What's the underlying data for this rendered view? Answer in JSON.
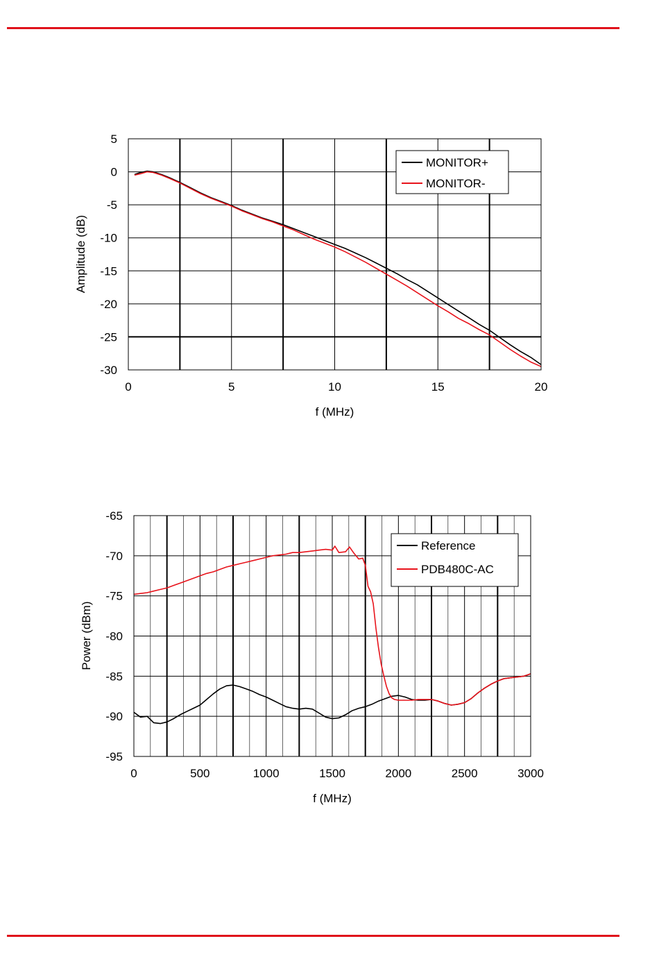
{
  "colors": {
    "rule": "#e0121b",
    "black_series": "#000000",
    "red_series": "#e8131b",
    "grid_major": "#000000",
    "grid_minor": "#000000"
  },
  "chart_data": [
    {
      "type": "line",
      "xlabel": "f (MHz)",
      "ylabel": "Amplitude (dB)",
      "xlim": [
        0,
        20
      ],
      "ylim": [
        -30,
        5
      ],
      "xticks": [
        0,
        5,
        10,
        15,
        20
      ],
      "yticks": [
        5,
        0,
        -5,
        -10,
        -15,
        -20,
        -25,
        -30
      ],
      "minor_x_grid": [
        2.5,
        7.5,
        12.5,
        17.5
      ],
      "minor_y_grid": [
        -25
      ],
      "grid": true,
      "legend": "top-right",
      "series": [
        {
          "name": "MONITOR+",
          "color": "#000000",
          "x": [
            0.3,
            0.6,
            0.9,
            1.2,
            1.6,
            2.0,
            2.5,
            3.0,
            3.5,
            4.0,
            4.5,
            5.0,
            5.5,
            6.0,
            6.5,
            7.0,
            7.5,
            8.0,
            8.5,
            9.0,
            9.5,
            10.0,
            10.5,
            11.0,
            11.5,
            12.0,
            12.5,
            13.0,
            13.5,
            14.0,
            14.5,
            15.0,
            15.5,
            16.0,
            16.5,
            17.0,
            17.5,
            18.0,
            18.5,
            19.0,
            19.5,
            20.0
          ],
          "y": [
            -0.4,
            -0.1,
            0.1,
            0.0,
            -0.4,
            -0.9,
            -1.6,
            -2.4,
            -3.2,
            -3.9,
            -4.5,
            -5.1,
            -5.8,
            -6.4,
            -7.0,
            -7.5,
            -8.0,
            -8.6,
            -9.2,
            -9.8,
            -10.4,
            -11.0,
            -11.6,
            -12.3,
            -13.0,
            -13.8,
            -14.6,
            -15.4,
            -16.3,
            -17.1,
            -18.1,
            -19.1,
            -20.1,
            -21.1,
            -22.1,
            -23.1,
            -24.0,
            -25.1,
            -26.2,
            -27.2,
            -28.1,
            -29.2
          ]
        },
        {
          "name": "MONITOR-",
          "color": "#e8131b",
          "x": [
            0.3,
            0.6,
            0.9,
            1.2,
            1.6,
            2.0,
            2.5,
            3.0,
            3.5,
            4.0,
            4.5,
            5.0,
            5.5,
            6.0,
            6.5,
            7.0,
            7.5,
            8.0,
            8.5,
            9.0,
            9.5,
            10.0,
            10.5,
            11.0,
            11.5,
            12.0,
            12.5,
            13.0,
            13.5,
            14.0,
            14.5,
            15.0,
            15.5,
            16.0,
            16.5,
            17.0,
            17.5,
            18.0,
            18.5,
            19.0,
            19.5,
            20.0
          ],
          "y": [
            -0.5,
            -0.3,
            0.0,
            -0.1,
            -0.5,
            -1.0,
            -1.7,
            -2.5,
            -3.3,
            -4.0,
            -4.6,
            -5.2,
            -5.9,
            -6.5,
            -7.1,
            -7.6,
            -8.2,
            -8.8,
            -9.5,
            -10.2,
            -10.8,
            -11.4,
            -12.1,
            -12.9,
            -13.7,
            -14.6,
            -15.5,
            -16.4,
            -17.3,
            -18.3,
            -19.3,
            -20.3,
            -21.2,
            -22.2,
            -23.0,
            -23.9,
            -24.7,
            -25.8,
            -26.9,
            -27.9,
            -28.8,
            -29.5
          ]
        }
      ]
    },
    {
      "type": "line",
      "xlabel": "f (MHz)",
      "ylabel": "Power (dBm)",
      "xlim": [
        0,
        3000
      ],
      "ylim": [
        -95,
        -65
      ],
      "xticks": [
        0,
        500,
        1000,
        1500,
        2000,
        2500,
        3000
      ],
      "yticks": [
        -65,
        -70,
        -75,
        -80,
        -85,
        -90,
        -95
      ],
      "minor_x_grid": [
        250,
        750,
        1250,
        1750,
        2250,
        2750
      ],
      "minor_y_grid": [],
      "grid": true,
      "legend": "top-right",
      "series": [
        {
          "name": "Reference",
          "color": "#000000",
          "x": [
            0,
            50,
            100,
            150,
            200,
            250,
            300,
            350,
            400,
            450,
            500,
            550,
            600,
            650,
            700,
            750,
            800,
            850,
            900,
            950,
            1000,
            1050,
            1100,
            1150,
            1200,
            1250,
            1300,
            1350,
            1400,
            1450,
            1500,
            1550,
            1600,
            1650,
            1700,
            1750,
            1800,
            1850,
            1900,
            1950,
            2000,
            2050,
            2100,
            2150,
            2200,
            2250,
            2300,
            2350,
            2400,
            2450,
            2500,
            2550,
            2600,
            2650,
            2700,
            2750,
            2800,
            2850,
            2900,
            2950,
            3000
          ],
          "y": [
            -89.5,
            -90.1,
            -90.0,
            -90.8,
            -90.9,
            -90.7,
            -90.3,
            -89.8,
            -89.4,
            -89.0,
            -88.6,
            -87.9,
            -87.2,
            -86.6,
            -86.2,
            -86.1,
            -86.3,
            -86.6,
            -86.9,
            -87.3,
            -87.6,
            -88.0,
            -88.4,
            -88.8,
            -89.0,
            -89.1,
            -89.0,
            -89.1,
            -89.6,
            -90.1,
            -90.3,
            -90.2,
            -89.8,
            -89.3,
            -89.0,
            -88.8,
            -88.5,
            -88.1,
            -87.8,
            -87.5,
            -87.4,
            -87.6,
            -87.9,
            -88.0,
            -88.0,
            -87.9,
            -88.1,
            -88.4,
            -88.6,
            -88.5,
            -88.3,
            -87.8,
            -87.1,
            -86.5,
            -86.0,
            -85.6,
            -85.3,
            -85.2,
            -85.1,
            -85.0,
            -84.7
          ]
        },
        {
          "name": "PDB480C-AC",
          "color": "#e8131b",
          "x": [
            0,
            50,
            100,
            150,
            200,
            250,
            300,
            350,
            400,
            450,
            500,
            550,
            600,
            650,
            700,
            750,
            800,
            850,
            900,
            950,
            1000,
            1050,
            1100,
            1150,
            1200,
            1250,
            1300,
            1350,
            1400,
            1450,
            1500,
            1520,
            1550,
            1600,
            1630,
            1660,
            1700,
            1730,
            1750,
            1770,
            1790,
            1810,
            1830,
            1850,
            1870,
            1890,
            1910,
            1930,
            1950,
            1970,
            2000,
            2050,
            2100,
            2150,
            2200,
            2250,
            2300,
            2350,
            2400,
            2450,
            2500,
            2550,
            2600,
            2650,
            2700,
            2750,
            2800,
            2850,
            2900,
            2950,
            3000
          ],
          "y": [
            -74.8,
            -74.7,
            -74.6,
            -74.4,
            -74.2,
            -74.0,
            -73.7,
            -73.4,
            -73.1,
            -72.8,
            -72.5,
            -72.2,
            -72.0,
            -71.7,
            -71.4,
            -71.2,
            -71.0,
            -70.8,
            -70.6,
            -70.4,
            -70.2,
            -70.0,
            -69.9,
            -69.8,
            -69.6,
            -69.6,
            -69.5,
            -69.4,
            -69.3,
            -69.2,
            -69.3,
            -68.8,
            -69.6,
            -69.5,
            -68.9,
            -69.6,
            -70.4,
            -70.3,
            -71.2,
            -73.8,
            -74.5,
            -76.0,
            -79.0,
            -81.5,
            -83.5,
            -85.0,
            -86.3,
            -87.2,
            -87.7,
            -87.9,
            -88.0,
            -88.0,
            -88.0,
            -87.9,
            -87.9,
            -87.9,
            -88.1,
            -88.4,
            -88.6,
            -88.5,
            -88.3,
            -87.8,
            -87.1,
            -86.5,
            -86.0,
            -85.6,
            -85.3,
            -85.2,
            -85.1,
            -85.0,
            -84.7
          ]
        }
      ]
    }
  ]
}
